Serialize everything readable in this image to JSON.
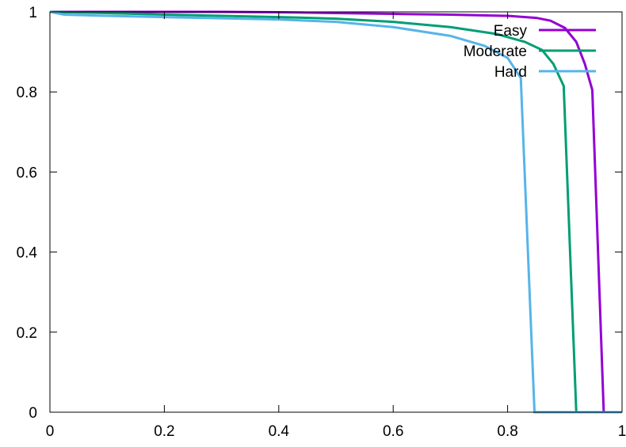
{
  "chart_data": {
    "type": "line",
    "title": "",
    "xlabel": "",
    "ylabel": "",
    "xlim": [
      0,
      1
    ],
    "ylim": [
      0,
      1
    ],
    "grid": false,
    "legend_position": "top-right",
    "x_ticks": [
      {
        "value": 0,
        "label": "0"
      },
      {
        "value": 0.2,
        "label": "0.2"
      },
      {
        "value": 0.4,
        "label": "0.4"
      },
      {
        "value": 0.6,
        "label": "0.6"
      },
      {
        "value": 0.8,
        "label": "0.8"
      },
      {
        "value": 1,
        "label": "1"
      }
    ],
    "y_ticks": [
      {
        "value": 0,
        "label": "0"
      },
      {
        "value": 0.2,
        "label": "0.2"
      },
      {
        "value": 0.4,
        "label": "0.4"
      },
      {
        "value": 0.6,
        "label": "0.6"
      },
      {
        "value": 0.8,
        "label": "0.8"
      },
      {
        "value": 1,
        "label": "1"
      }
    ],
    "series": [
      {
        "name": "Easy",
        "color": "#9400d3",
        "points": [
          [
            0,
            1.0
          ],
          [
            0.1,
            1.0
          ],
          [
            0.2,
            1.0
          ],
          [
            0.3,
            1.0
          ],
          [
            0.4,
            0.999
          ],
          [
            0.5,
            0.997
          ],
          [
            0.6,
            0.995
          ],
          [
            0.7,
            0.993
          ],
          [
            0.8,
            0.99
          ],
          [
            0.85,
            0.985
          ],
          [
            0.875,
            0.978
          ],
          [
            0.9,
            0.96
          ],
          [
            0.92,
            0.925
          ],
          [
            0.935,
            0.87
          ],
          [
            0.948,
            0.805
          ],
          [
            0.968,
            0.0
          ],
          [
            1.0,
            0.0
          ]
        ]
      },
      {
        "name": "Moderate",
        "color": "#009e73",
        "points": [
          [
            0,
            1.0
          ],
          [
            0.1,
            0.997
          ],
          [
            0.2,
            0.993
          ],
          [
            0.3,
            0.99
          ],
          [
            0.4,
            0.987
          ],
          [
            0.5,
            0.983
          ],
          [
            0.6,
            0.975
          ],
          [
            0.7,
            0.962
          ],
          [
            0.78,
            0.945
          ],
          [
            0.83,
            0.925
          ],
          [
            0.86,
            0.905
          ],
          [
            0.88,
            0.87
          ],
          [
            0.898,
            0.815
          ],
          [
            0.92,
            0.0
          ],
          [
            1.0,
            0.0
          ]
        ]
      },
      {
        "name": "Hard",
        "color": "#56b4e9",
        "points": [
          [
            0,
            1.0
          ],
          [
            0.025,
            0.993
          ],
          [
            0.1,
            0.99
          ],
          [
            0.2,
            0.987
          ],
          [
            0.3,
            0.984
          ],
          [
            0.4,
            0.981
          ],
          [
            0.5,
            0.975
          ],
          [
            0.6,
            0.962
          ],
          [
            0.7,
            0.94
          ],
          [
            0.76,
            0.915
          ],
          [
            0.8,
            0.885
          ],
          [
            0.823,
            0.835
          ],
          [
            0.847,
            0.0
          ],
          [
            1.0,
            0.0
          ]
        ]
      }
    ]
  }
}
